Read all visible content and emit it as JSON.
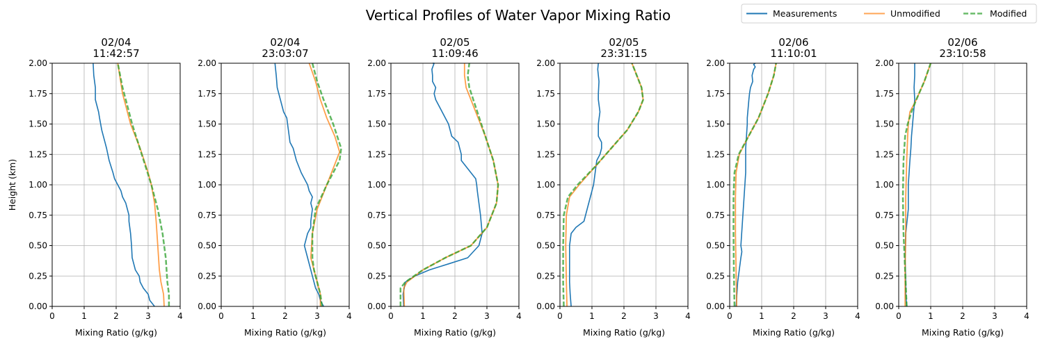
{
  "chart_data": {
    "type": "line",
    "title": "Vertical Profiles of Water Vapor Mixing Ratio",
    "xlabel": "Mixing Ratio (g/kg)",
    "ylabel": "Height (km)",
    "xlim": [
      0,
      4
    ],
    "ylim": [
      0,
      2
    ],
    "xticks": [
      "0",
      "1",
      "2",
      "3",
      "4"
    ],
    "yticks": [
      "0.00",
      "0.25",
      "0.50",
      "0.75",
      "1.00",
      "1.25",
      "1.50",
      "1.75",
      "2.00"
    ],
    "grid": true,
    "legend": {
      "position": "top-right",
      "entries": [
        "Measurements",
        "Unmodified",
        "Modified"
      ]
    },
    "colors": {
      "Measurements": "#1f77b4",
      "Unmodified": "#ff7f0e",
      "Modified": "#2ca02c"
    },
    "panels": [
      {
        "date": "02/04",
        "time": "11:42:57",
        "series": [
          {
            "name": "Measurements",
            "x": [
              3.2,
              3.05,
              3.0,
              2.85,
              2.75,
              2.72,
              2.6,
              2.5,
              2.48,
              2.45,
              2.4,
              2.4,
              2.35,
              2.3,
              2.2,
              2.15,
              2.05,
              1.95,
              1.9,
              1.78,
              1.7,
              1.65,
              1.55,
              1.48,
              1.45,
              1.35,
              1.35,
              1.3,
              1.28
            ],
            "y": [
              0.0,
              0.05,
              0.1,
              0.15,
              0.2,
              0.25,
              0.3,
              0.4,
              0.5,
              0.6,
              0.7,
              0.75,
              0.8,
              0.85,
              0.9,
              0.95,
              1.0,
              1.05,
              1.1,
              1.2,
              1.3,
              1.35,
              1.45,
              1.55,
              1.6,
              1.7,
              1.8,
              1.9,
              2.0
            ]
          },
          {
            "name": "Unmodified",
            "x": [
              3.5,
              3.48,
              3.4,
              3.35,
              3.3,
              3.25,
              3.2,
              3.1,
              3.0,
              2.75,
              2.45,
              2.2,
              2.05
            ],
            "y": [
              0.0,
              0.1,
              0.2,
              0.3,
              0.5,
              0.7,
              0.85,
              1.0,
              1.1,
              1.3,
              1.5,
              1.75,
              2.0
            ]
          },
          {
            "name": "Modified",
            "x": [
              3.65,
              3.65,
              3.6,
              3.55,
              3.45,
              3.3,
              3.1,
              2.8,
              2.5,
              2.2,
              2.05
            ],
            "y": [
              0.0,
              0.1,
              0.2,
              0.4,
              0.6,
              0.8,
              1.0,
              1.25,
              1.5,
              1.8,
              2.0
            ]
          }
        ]
      },
      {
        "date": "02/04",
        "time": "23:03:07",
        "series": [
          {
            "name": "Measurements",
            "x": [
              3.2,
              3.1,
              3.05,
              2.95,
              2.9,
              2.85,
              2.8,
              2.7,
              2.6,
              2.65,
              2.7,
              2.8,
              2.8,
              2.85,
              2.8,
              2.85,
              2.75,
              2.7,
              2.6,
              2.5,
              2.35,
              2.25,
              2.15,
              2.1,
              2.05,
              1.95,
              1.85,
              1.75,
              1.72,
              1.68
            ],
            "y": [
              0.0,
              0.05,
              0.1,
              0.15,
              0.2,
              0.25,
              0.3,
              0.4,
              0.5,
              0.55,
              0.6,
              0.65,
              0.7,
              0.8,
              0.85,
              0.9,
              0.95,
              1.0,
              1.05,
              1.1,
              1.2,
              1.3,
              1.35,
              1.45,
              1.55,
              1.6,
              1.7,
              1.8,
              1.9,
              2.0
            ]
          },
          {
            "name": "Unmodified",
            "x": [
              3.1,
              3.1,
              3.0,
              2.9,
              2.8,
              2.85,
              3.0,
              3.3,
              3.7,
              3.55,
              3.3,
              3.1,
              2.95,
              2.75
            ],
            "y": [
              0.0,
              0.1,
              0.2,
              0.3,
              0.4,
              0.6,
              0.8,
              1.0,
              1.27,
              1.4,
              1.55,
              1.7,
              1.85,
              2.0
            ]
          },
          {
            "name": "Modified",
            "x": [
              3.15,
              3.1,
              3.0,
              2.9,
              2.85,
              2.85,
              2.95,
              3.3,
              3.7,
              3.75,
              3.5,
              3.2,
              3.0,
              2.85
            ],
            "y": [
              0.0,
              0.1,
              0.2,
              0.3,
              0.4,
              0.6,
              0.8,
              1.0,
              1.2,
              1.3,
              1.5,
              1.7,
              1.85,
              2.0
            ]
          }
        ]
      },
      {
        "date": "02/05",
        "time": "11:09:46",
        "series": [
          {
            "name": "Measurements",
            "x": [
              0.4,
              0.38,
              0.45,
              0.75,
              1.2,
              1.8,
              2.4,
              2.75,
              2.85,
              2.8,
              2.75,
              2.7,
              2.68,
              2.65,
              2.2,
              2.2,
              2.1,
              1.9,
              1.8,
              1.6,
              1.4,
              1.35,
              1.4,
              1.3,
              1.3,
              1.28,
              1.35,
              1.3
            ],
            "y": [
              0.0,
              0.1,
              0.2,
              0.25,
              0.3,
              0.35,
              0.4,
              0.5,
              0.6,
              0.75,
              0.85,
              0.95,
              1.0,
              1.05,
              1.2,
              1.25,
              1.35,
              1.4,
              1.5,
              1.6,
              1.7,
              1.75,
              1.8,
              1.85,
              1.9,
              1.95,
              2.0,
              2.0
            ]
          },
          {
            "name": "Unmodified",
            "x": [
              0.42,
              0.4,
              0.5,
              1.0,
              1.7,
              2.5,
              3.0,
              3.3,
              3.35,
              3.2,
              2.95,
              2.65,
              2.35,
              2.3,
              2.3
            ],
            "y": [
              0.0,
              0.15,
              0.2,
              0.3,
              0.4,
              0.5,
              0.65,
              0.85,
              1.0,
              1.2,
              1.4,
              1.6,
              1.8,
              1.9,
              2.0
            ]
          },
          {
            "name": "Modified",
            "x": [
              0.3,
              0.3,
              0.45,
              1.0,
              1.7,
              2.5,
              3.0,
              3.3,
              3.35,
              3.2,
              2.95,
              2.7,
              2.45,
              2.4,
              2.45
            ],
            "y": [
              0.0,
              0.15,
              0.2,
              0.3,
              0.4,
              0.5,
              0.65,
              0.85,
              1.0,
              1.2,
              1.4,
              1.6,
              1.8,
              1.9,
              2.0
            ]
          }
        ]
      },
      {
        "date": "02/05",
        "time": "23:31:15",
        "series": [
          {
            "name": "Measurements",
            "x": [
              0.35,
              0.32,
              0.3,
              0.3,
              0.3,
              0.35,
              0.5,
              0.75,
              0.85,
              0.95,
              1.05,
              1.1,
              1.15,
              1.25,
              1.3,
              1.3,
              1.2,
              1.2,
              1.25,
              1.2,
              1.2,
              1.22,
              1.18,
              1.2
            ],
            "y": [
              0.0,
              0.1,
              0.2,
              0.3,
              0.5,
              0.6,
              0.65,
              0.7,
              0.8,
              0.9,
              1.0,
              1.1,
              1.2,
              1.25,
              1.3,
              1.35,
              1.4,
              1.5,
              1.6,
              1.7,
              1.75,
              1.85,
              1.95,
              2.0
            ]
          },
          {
            "name": "Unmodified",
            "x": [
              0.22,
              0.2,
              0.18,
              0.2,
              0.3,
              0.6,
              1.1,
              1.6,
              2.1,
              2.45,
              2.6,
              2.55,
              2.4,
              2.25
            ],
            "y": [
              0.0,
              0.2,
              0.5,
              0.75,
              0.9,
              1.0,
              1.15,
              1.3,
              1.45,
              1.6,
              1.7,
              1.8,
              1.9,
              2.0
            ]
          },
          {
            "name": "Modified",
            "x": [
              0.12,
              0.1,
              0.1,
              0.12,
              0.25,
              0.55,
              1.1,
              1.6,
              2.1,
              2.45,
              2.6,
              2.55,
              2.4,
              2.25
            ],
            "y": [
              0.0,
              0.2,
              0.5,
              0.75,
              0.9,
              1.0,
              1.15,
              1.3,
              1.45,
              1.6,
              1.7,
              1.8,
              1.9,
              2.0
            ]
          }
        ]
      },
      {
        "date": "02/06",
        "time": "11:10:01",
        "series": [
          {
            "name": "Measurements",
            "x": [
              0.2,
              0.25,
              0.35,
              0.38,
              0.35,
              0.4,
              0.45,
              0.5,
              0.5,
              0.55,
              0.55,
              0.6,
              0.62,
              0.65,
              0.72,
              0.7,
              0.75,
              0.8,
              0.75,
              0.8
            ],
            "y": [
              0.0,
              0.2,
              0.4,
              0.45,
              0.5,
              0.7,
              0.9,
              1.1,
              1.3,
              1.5,
              1.55,
              1.7,
              1.75,
              1.8,
              1.85,
              1.9,
              1.95,
              1.97,
              1.99,
              2.0
            ]
          },
          {
            "name": "Unmodified",
            "x": [
              0.22,
              0.2,
              0.18,
              0.18,
              0.2,
              0.3,
              0.55,
              0.9,
              1.2,
              1.38,
              1.45
            ],
            "y": [
              0.0,
              0.3,
              0.6,
              0.9,
              1.1,
              1.25,
              1.38,
              1.55,
              1.75,
              1.9,
              2.0
            ]
          },
          {
            "name": "Modified",
            "x": [
              0.15,
              0.13,
              0.12,
              0.12,
              0.15,
              0.28,
              0.55,
              0.9,
              1.2,
              1.38,
              1.45
            ],
            "y": [
              0.0,
              0.3,
              0.6,
              0.9,
              1.1,
              1.25,
              1.38,
              1.55,
              1.75,
              1.9,
              2.0
            ]
          }
        ]
      },
      {
        "date": "02/06",
        "time": "23:10:58",
        "series": [
          {
            "name": "Measurements",
            "x": [
              0.25,
              0.22,
              0.22,
              0.2,
              0.22,
              0.3,
              0.3,
              0.35,
              0.38,
              0.4,
              0.45,
              0.5,
              0.48,
              0.5,
              0.5
            ],
            "y": [
              0.0,
              0.1,
              0.2,
              0.4,
              0.6,
              0.8,
              1.0,
              1.2,
              1.3,
              1.4,
              1.55,
              1.7,
              1.8,
              1.9,
              2.0
            ]
          },
          {
            "name": "Unmodified",
            "x": [
              0.2,
              0.2,
              0.22,
              0.22,
              0.25,
              0.28,
              0.3,
              0.35,
              0.55,
              0.8,
              1.0
            ],
            "y": [
              0.0,
              0.3,
              0.6,
              0.9,
              1.2,
              1.4,
              1.5,
              1.6,
              1.7,
              1.85,
              2.0
            ]
          },
          {
            "name": "Modified",
            "x": [
              0.25,
              0.2,
              0.15,
              0.13,
              0.15,
              0.2,
              0.28,
              0.4,
              0.55,
              0.8,
              1.0
            ],
            "y": [
              0.0,
              0.3,
              0.6,
              0.9,
              1.2,
              1.4,
              1.5,
              1.6,
              1.7,
              1.85,
              2.0
            ]
          }
        ]
      }
    ]
  }
}
